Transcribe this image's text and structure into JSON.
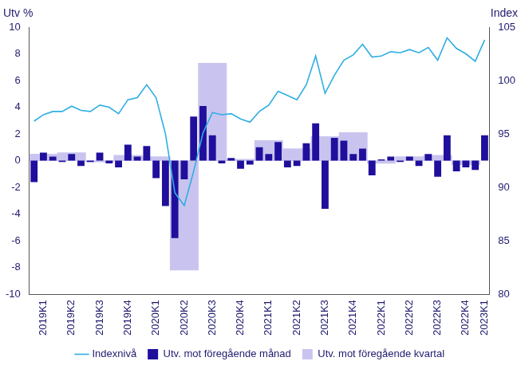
{
  "chart_data": {
    "type": "bar",
    "ylabel": "Utv %",
    "y2label": "Index",
    "categories": [
      null,
      "2019K1",
      null,
      null,
      "2019K2",
      null,
      null,
      "2019K3",
      null,
      null,
      "2019K4",
      null,
      null,
      "2020K1",
      null,
      null,
      "2020K2",
      null,
      null,
      "2020K3",
      null,
      null,
      "2020K4",
      null,
      null,
      "2021K1",
      null,
      null,
      "2021K2",
      null,
      null,
      "2021K3",
      null,
      null,
      "2021K4",
      null,
      null,
      "2022K1",
      null,
      null,
      "2022K2",
      null,
      null,
      "2022K3",
      null,
      null,
      "2022K4",
      null,
      "2023K1"
    ],
    "ylim": [
      -10,
      10
    ],
    "yticks": [
      -10,
      -8,
      -6,
      -4,
      -2,
      0,
      2,
      4,
      6,
      8,
      10
    ],
    "y2lim": [
      80,
      105
    ],
    "y2ticks": [
      80,
      85,
      90,
      95,
      100,
      105
    ],
    "grid": false,
    "legend": "bottom",
    "series": [
      {
        "name": "Utv. mot föregående kvartal",
        "type": "bar",
        "color": "#c9c4ef",
        "values": [
          0.5,
          0.5,
          0.5,
          0.6,
          0.6,
          0.6,
          -0.1,
          -0.1,
          -0.1,
          0.4,
          0.4,
          0.4,
          0.3,
          0.3,
          0.3,
          -8.2,
          -8.2,
          -8.2,
          7.3,
          7.3,
          7.3,
          0.1,
          0.1,
          0.1,
          1.5,
          1.5,
          1.5,
          0.9,
          0.9,
          0.9,
          1.8,
          1.8,
          1.8,
          2.1,
          2.1,
          2.1,
          -0.2,
          -0.2,
          -0.2,
          0.3,
          0.3,
          0.3,
          0.4,
          0.4,
          0.4,
          -0.3,
          -0.3,
          -0.3,
          null
        ]
      },
      {
        "name": "Utv. mot föregående månad",
        "type": "bar",
        "color": "#1f0f9c",
        "values": [
          -1.6,
          0.6,
          0.3,
          -0.1,
          0.5,
          -0.4,
          -0.1,
          0.6,
          -0.2,
          -0.5,
          1.2,
          0.3,
          1.1,
          -1.3,
          -3.4,
          -5.8,
          -1.4,
          3.3,
          4.1,
          1.9,
          -0.2,
          0.2,
          -0.6,
          -0.3,
          1.0,
          0.5,
          1.4,
          -0.5,
          -0.4,
          1.3,
          2.8,
          -3.6,
          1.7,
          1.5,
          0.5,
          0.9,
          -1.1,
          0.1,
          0.3,
          -0.1,
          0.3,
          -0.4,
          0.5,
          -1.2,
          1.9,
          -0.8,
          -0.5,
          -0.7,
          1.9
        ]
      },
      {
        "name": "Indexnivå",
        "type": "line",
        "axis": "y2",
        "color": "#2eaee3",
        "values": [
          96.2,
          96.8,
          97.1,
          97.1,
          97.6,
          97.2,
          97.1,
          97.7,
          97.5,
          96.9,
          98.2,
          98.4,
          99.6,
          98.4,
          95.0,
          89.5,
          88.3,
          91.5,
          95.1,
          97.0,
          96.8,
          96.9,
          96.4,
          96.1,
          97.1,
          97.7,
          99.0,
          98.6,
          98.2,
          99.6,
          102.3,
          98.8,
          100.5,
          101.9,
          102.4,
          103.4,
          102.2,
          102.3,
          102.7,
          102.6,
          102.9,
          102.6,
          103.1,
          101.9,
          104.0,
          103.0,
          102.5,
          101.8,
          103.8
        ]
      }
    ]
  }
}
